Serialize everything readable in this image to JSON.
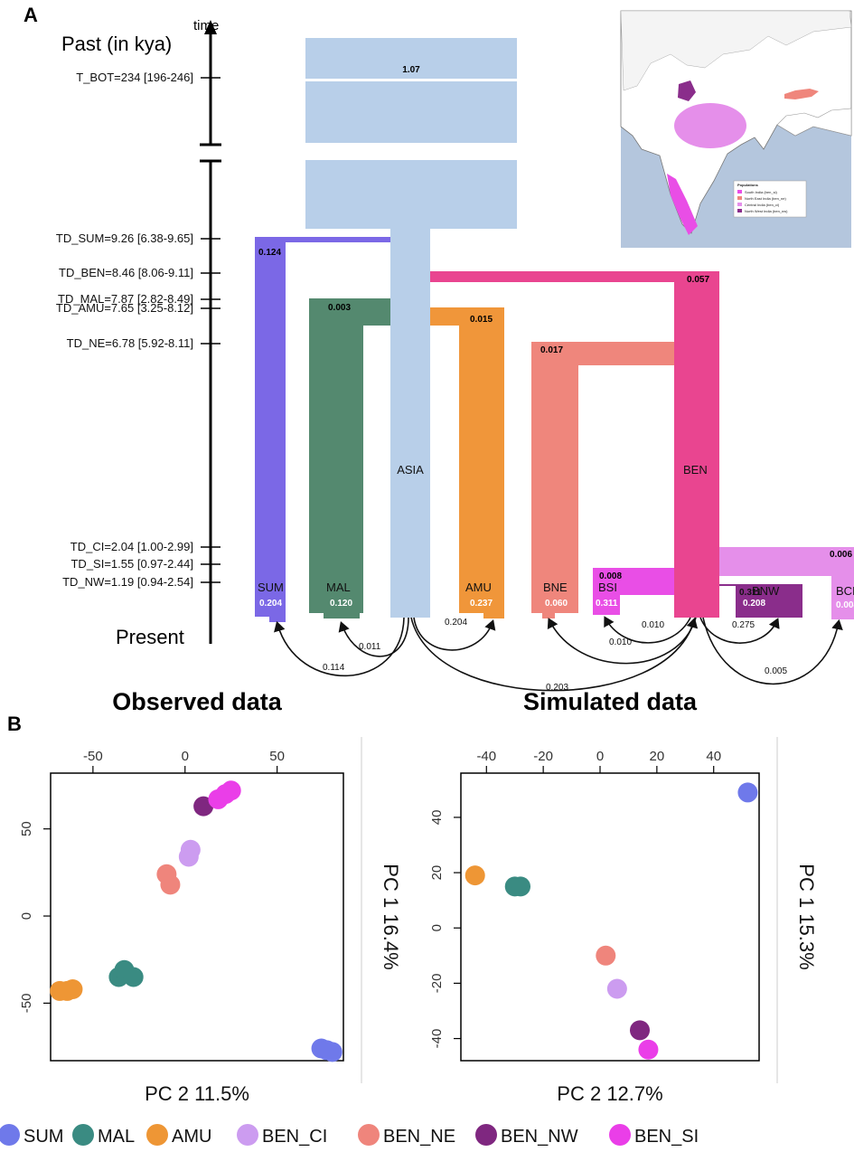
{
  "panel_a": {
    "letter": "A",
    "time_arrow_label": "time",
    "past_label": "Past (in kya)",
    "present_label": "Present",
    "time_labels": [
      "T_BOT=234 [196-246]",
      "TD_SUM=9.26  [6.38-9.65]",
      "TD_BEN=8.46  [8.06-9.11]",
      "TD_MAL=7.87  [2.82-8.49]",
      "TD_AMU=7.65  [3.25-8.12]",
      "TD_NE=6.78  [5.92-8.11]",
      "TD_CI=2.04  [1.00-2.99]",
      "TD_SI=1.55  [0.97-2.44]",
      "TD_NW=1.19  [0.94-2.54]"
    ],
    "populations": [
      {
        "label": "SUM",
        "size": "0.204",
        "founder": "0.124",
        "color": "#7b68e6"
      },
      {
        "label": "MAL",
        "size": "0.120",
        "founder": "0.003",
        "color": "#54896f"
      },
      {
        "label": "ASIA",
        "size": "",
        "founder": "",
        "color": "#b8cfe9"
      },
      {
        "label": "AMU",
        "size": "0.237",
        "founder": "0.015",
        "color": "#f0963a"
      },
      {
        "label": "BNE",
        "size": "0.060",
        "founder": "0.017",
        "color": "#ef867c"
      },
      {
        "label": "BSI",
        "size": "0.311",
        "founder": "0.008",
        "color": "#e94ee6"
      },
      {
        "label": "BEN",
        "size": "",
        "founder": "0.057",
        "color": "#e94590"
      },
      {
        "label": "BNW",
        "size": "0.208",
        "founder": "0.311",
        "color": "#8a2d8b"
      },
      {
        "label": "BCI",
        "size": "0.004",
        "founder": "0.006",
        "color": "#e58fea"
      }
    ],
    "ancestral_size": "1.07",
    "migrations": [
      "0.114",
      "0.011",
      "0.204",
      "0.203",
      "0.010",
      "0.010",
      "0.275",
      "0.005"
    ],
    "map_legend": {
      "title": "Populations",
      "items": [
        {
          "label": "South India (ben_si)",
          "color": "#e94ee6"
        },
        {
          "label": "North East India (ben_ne)",
          "color": "#ef867c"
        },
        {
          "label": "Central India (ben_ci)",
          "color": "#e58fea"
        },
        {
          "label": "North West India (ben_nw)",
          "color": "#8a2d8b"
        }
      ]
    }
  },
  "panel_b": {
    "letter": "B",
    "legend": [
      {
        "label": "SUM",
        "color": "#6f79ea"
      },
      {
        "label": "MAL",
        "color": "#3a8b82"
      },
      {
        "label": "AMU",
        "color": "#ee9635"
      },
      {
        "label": "BEN_CI",
        "color": "#cc9cf0"
      },
      {
        "label": "BEN_NE",
        "color": "#ef857c"
      },
      {
        "label": "BEN_NW",
        "color": "#7f2780"
      },
      {
        "label": "BEN_SI",
        "color": "#ea3ee8"
      }
    ]
  },
  "chart_data": [
    {
      "type": "scatter",
      "title": "Observed data",
      "xlabel": "PC 2   11.5%",
      "ylabel": "PC 1  16.4%",
      "xlim": [
        -73,
        86
      ],
      "ylim": [
        -83,
        82
      ],
      "xticks": [
        -50,
        0,
        50
      ],
      "yticks": [
        50,
        0,
        -50
      ],
      "points": [
        {
          "group": "AMU",
          "x": -68,
          "y": -43
        },
        {
          "group": "AMU",
          "x": -64,
          "y": -43
        },
        {
          "group": "AMU",
          "x": -61,
          "y": -42
        },
        {
          "group": "MAL",
          "x": -36,
          "y": -35
        },
        {
          "group": "MAL",
          "x": -33,
          "y": -31
        },
        {
          "group": "MAL",
          "x": -28,
          "y": -35
        },
        {
          "group": "BEN_NE",
          "x": -10,
          "y": 24
        },
        {
          "group": "BEN_NE",
          "x": -8,
          "y": 18
        },
        {
          "group": "BEN_CI",
          "x": 2,
          "y": 34
        },
        {
          "group": "BEN_CI",
          "x": 3,
          "y": 38
        },
        {
          "group": "BEN_NW",
          "x": 10,
          "y": 63
        },
        {
          "group": "BEN_SI",
          "x": 18,
          "y": 67
        },
        {
          "group": "BEN_SI",
          "x": 22,
          "y": 70
        },
        {
          "group": "BEN_SI",
          "x": 25,
          "y": 72
        },
        {
          "group": "SUM",
          "x": 74,
          "y": -76
        },
        {
          "group": "SUM",
          "x": 77,
          "y": -77
        },
        {
          "group": "SUM",
          "x": 80,
          "y": -78
        }
      ]
    },
    {
      "type": "scatter",
      "title": "Simulated data",
      "xlabel": "PC 2   12.7%",
      "ylabel": "PC 1  15.3%",
      "xlim": [
        -49,
        56
      ],
      "ylim": [
        -48,
        56
      ],
      "xticks": [
        -40,
        -20,
        0,
        20,
        40
      ],
      "yticks": [
        40,
        20,
        0,
        -20,
        -40
      ],
      "points": [
        {
          "group": "SUM",
          "x": 52,
          "y": 49
        },
        {
          "group": "AMU",
          "x": -44,
          "y": 19
        },
        {
          "group": "MAL",
          "x": -30,
          "y": 15
        },
        {
          "group": "MAL",
          "x": -28,
          "y": 15
        },
        {
          "group": "BEN_NE",
          "x": 2,
          "y": -10
        },
        {
          "group": "BEN_CI",
          "x": 6,
          "y": -22
        },
        {
          "group": "BEN_NW",
          "x": 14,
          "y": -37
        },
        {
          "group": "BEN_SI",
          "x": 17,
          "y": -44
        }
      ]
    }
  ]
}
